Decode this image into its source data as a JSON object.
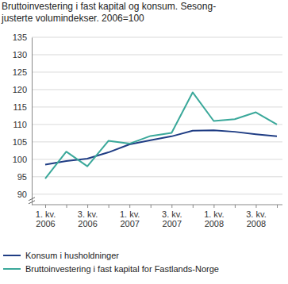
{
  "chart_data": {
    "type": "line",
    "title": [
      "Bruttoinvestering i fast kapital og konsum. Sesong-",
      "justerte volumindekser. 2006=100"
    ],
    "categories": [
      "1. kv. 2006",
      null,
      "3. kv. 2006",
      null,
      "1. kv. 2007",
      null,
      "3. kv. 2007",
      null,
      "1. kv. 2008",
      null,
      "3. kv. 2008",
      null
    ],
    "series": [
      {
        "name": "Konsum i husholdninger",
        "color": "#1f3d84",
        "values": [
          98.5,
          99.5,
          100.2,
          102.0,
          104.3,
          105.5,
          106.6,
          108.2,
          108.3,
          107.9,
          107.2,
          106.6
        ]
      },
      {
        "name": "Bruttoinvestering i fast kapital for Fastlands-Norge",
        "color": "#3aa89a",
        "values": [
          94.5,
          102.2,
          98.0,
          105.3,
          104.5,
          106.7,
          107.6,
          119.2,
          111.0,
          111.5,
          113.5,
          110.0
        ]
      }
    ],
    "ylim": [
      87,
      135
    ],
    "yticks": [
      90,
      95,
      100,
      105,
      110,
      115,
      120,
      125,
      130,
      135
    ],
    "grid": true,
    "legend": "bottom"
  }
}
